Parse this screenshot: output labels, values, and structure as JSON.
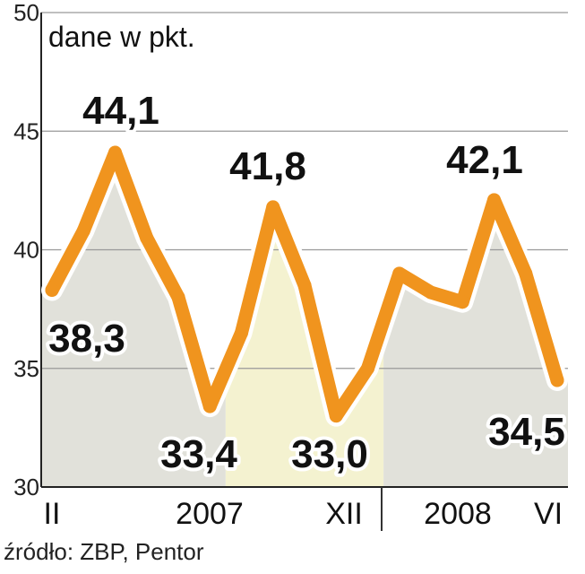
{
  "chart_data": {
    "type": "line",
    "ylabel": "dane w pkt.",
    "ylim": [
      30,
      50
    ],
    "yticks": [
      "30",
      "35",
      "40",
      "45",
      "50"
    ],
    "x_labels": [
      "II",
      "2007",
      "XII",
      "2008",
      "VI"
    ],
    "series": [
      {
        "values": [
          38.3,
          40.8,
          44.1,
          40.5,
          38.0,
          33.4,
          36.5,
          41.8,
          38.5,
          33.0,
          35.0,
          39.0,
          38.2,
          37.8,
          42.1,
          39.0,
          34.5
        ],
        "color": "#f0941e"
      }
    ],
    "data_labels": [
      {
        "index": 0,
        "text": "38,3"
      },
      {
        "index": 2,
        "text": "44,1"
      },
      {
        "index": 5,
        "text": "33,4"
      },
      {
        "index": 7,
        "text": "41,8"
      },
      {
        "index": 9,
        "text": "33,0"
      },
      {
        "index": 14,
        "text": "42,1"
      },
      {
        "index": 16,
        "text": "34,5"
      }
    ],
    "shaded_periods": [
      {
        "from_index": 0,
        "to_index": 5,
        "color": "#e1e1da"
      },
      {
        "from_index": 6,
        "to_index": 10,
        "color": "#f4f2d0"
      },
      {
        "from_index": 11,
        "to_index": 16,
        "color": "#e1e1da"
      }
    ],
    "grid": true
  },
  "source": "źródło: ZBP, Pentor"
}
